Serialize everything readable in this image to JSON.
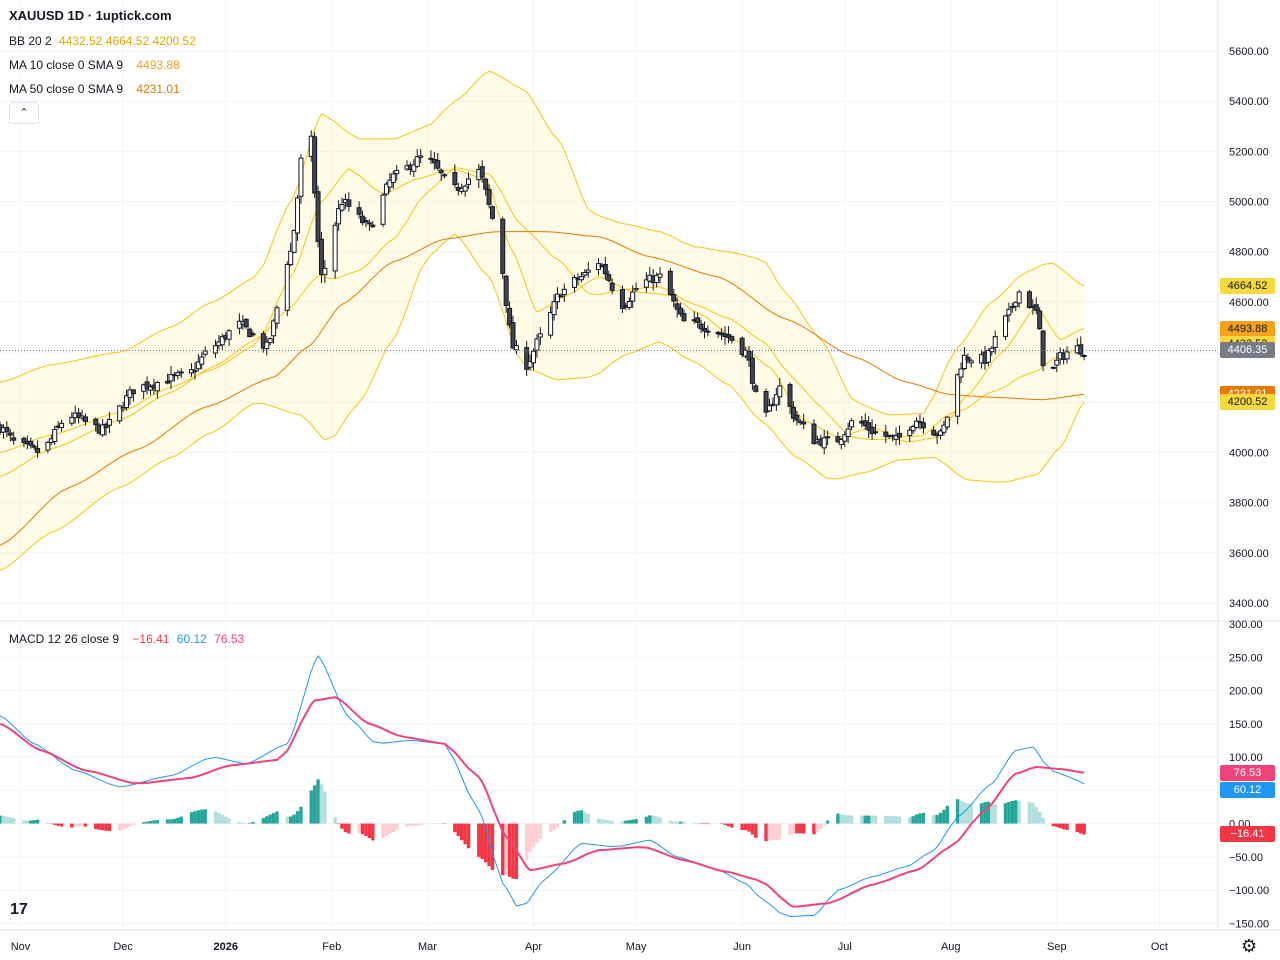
{
  "header": {
    "title": "XAUUSD 1D · 1uptick.com",
    "bb": {
      "name": "BB 20 2",
      "values": [
        "4432.52",
        "4664.52",
        "4200.52"
      ],
      "color": "#e0a800"
    },
    "ma10": {
      "name": "MA 10 close 0 SMA 9",
      "value": "4493.88",
      "color": "#f0a020"
    },
    "ma50": {
      "name": "MA 50 close 0 SMA 9",
      "value": "4231.01",
      "color": "#e07a00"
    },
    "collapse_icon": "chevron-up-icon",
    "collapse_glyph": "⌃"
  },
  "macd_legend": {
    "name": "MACD 12 26 close 9",
    "hist": "−16.41",
    "macd": "60.12",
    "signal": "76.53"
  },
  "price_tags": [
    {
      "label": "4664.52",
      "price": 4664.52,
      "bg": "#f7d93e",
      "fg": "#131722"
    },
    {
      "label": "4493.88",
      "price": 4493.88,
      "bg": "#f7a21b",
      "fg": "#131722"
    },
    {
      "label": "4432.52",
      "price": 4432.52,
      "bg": "#f7d93e",
      "fg": "#131722"
    },
    {
      "label": "4406.35",
      "price": 4406.35,
      "bg": "#787b86",
      "fg": "#ffffff"
    },
    {
      "label": "4231.01",
      "price": 4231.01,
      "bg": "#e6790a",
      "fg": "#ffffff"
    },
    {
      "label": "4200.52",
      "price": 4200.52,
      "bg": "#f7d93e",
      "fg": "#131722"
    }
  ],
  "macd_tags": [
    {
      "label": "76.53",
      "value": 76.53,
      "bg": "#ef447a",
      "fg": "#ffffff"
    },
    {
      "label": "60.12",
      "value": 60.12,
      "bg": "#2196f3",
      "fg": "#ffffff"
    },
    {
      "label": "−16.41",
      "value": -16.41,
      "bg": "#f23645",
      "fg": "#ffffff"
    }
  ],
  "footer": {
    "logo_icon": "tradingview-logo-icon",
    "logo_text": "17",
    "settings_icon": "gear-icon",
    "settings_glyph": "⚙"
  },
  "chart_data": [
    {
      "type": "candlestick",
      "title": "XAUUSD 1D",
      "ylim": [
        3340,
        5660
      ],
      "y_ticks": [
        "5600.00",
        "5400.00",
        "5200.00",
        "5000.00",
        "4800.00",
        "4600.00",
        "4400.00",
        "4200.00",
        "4000.00",
        "3800.00",
        "3600.00",
        "3400.00"
      ],
      "y_tick_values": [
        5600,
        5400,
        5200,
        5000,
        4800,
        4600,
        4400,
        4200,
        4000,
        3800,
        3600,
        3400
      ],
      "x_labels": [
        "Nov",
        "Dec",
        "2026",
        "Feb",
        "Mar",
        "Apr",
        "May",
        "Jun",
        "Jul",
        "Aug",
        "Sep",
        "Oct"
      ],
      "x_label_days": [
        6,
        36,
        66,
        97,
        125,
        156,
        186,
        217,
        247,
        278,
        309,
        339
      ],
      "first_day": 0,
      "last_price": 4406.35,
      "last_day": 317,
      "bb_upper_anchors": [
        [
          0,
          4280
        ],
        [
          15,
          4350
        ],
        [
          35,
          4400
        ],
        [
          50,
          4500
        ],
        [
          62,
          4600
        ],
        [
          75,
          4700
        ],
        [
          85,
          5000
        ],
        [
          94,
          5350
        ],
        [
          105,
          5250
        ],
        [
          115,
          5250
        ],
        [
          125,
          5300
        ],
        [
          133,
          5400
        ],
        [
          143,
          5520
        ],
        [
          153,
          5450
        ],
        [
          163,
          5250
        ],
        [
          173,
          4950
        ],
        [
          183,
          4910
        ],
        [
          193,
          4880
        ],
        [
          203,
          4820
        ],
        [
          213,
          4800
        ],
        [
          223,
          4770
        ],
        [
          230,
          4630
        ],
        [
          240,
          4450
        ],
        [
          250,
          4200
        ],
        [
          260,
          4150
        ],
        [
          270,
          4155
        ],
        [
          280,
          4420
        ],
        [
          290,
          4600
        ],
        [
          300,
          4720
        ],
        [
          307,
          4760
        ],
        [
          317,
          4665
        ]
      ],
      "bb_lower_anchors": [
        [
          0,
          3530
        ],
        [
          15,
          3680
        ],
        [
          35,
          3860
        ],
        [
          50,
          3980
        ],
        [
          62,
          4080
        ],
        [
          75,
          4200
        ],
        [
          88,
          4150
        ],
        [
          96,
          4040
        ],
        [
          105,
          4200
        ],
        [
          115,
          4450
        ],
        [
          125,
          4780
        ],
        [
          133,
          4870
        ],
        [
          143,
          4700
        ],
        [
          153,
          4340
        ],
        [
          163,
          4290
        ],
        [
          173,
          4300
        ],
        [
          183,
          4390
        ],
        [
          193,
          4440
        ],
        [
          203,
          4360
        ],
        [
          213,
          4270
        ],
        [
          223,
          4120
        ],
        [
          233,
          3980
        ],
        [
          243,
          3890
        ],
        [
          253,
          3920
        ],
        [
          263,
          3970
        ],
        [
          273,
          3980
        ],
        [
          283,
          3890
        ],
        [
          293,
          3880
        ],
        [
          303,
          3910
        ],
        [
          310,
          4020
        ],
        [
          317,
          4200
        ]
      ],
      "ma10_anchors": [
        [
          0,
          4000
        ],
        [
          15,
          4070
        ],
        [
          35,
          4160
        ],
        [
          50,
          4260
        ],
        [
          62,
          4330
        ],
        [
          75,
          4430
        ],
        [
          85,
          4700
        ],
        [
          94,
          5000
        ],
        [
          102,
          5130
        ],
        [
          112,
          5030
        ],
        [
          122,
          5090
        ],
        [
          132,
          5130
        ],
        [
          142,
          5090
        ],
        [
          150,
          4800
        ],
        [
          157,
          4560
        ],
        [
          165,
          4620
        ],
        [
          175,
          4700
        ],
        [
          185,
          4640
        ],
        [
          195,
          4630
        ],
        [
          205,
          4550
        ],
        [
          215,
          4450
        ],
        [
          225,
          4340
        ],
        [
          235,
          4130
        ],
        [
          245,
          4060
        ],
        [
          255,
          4100
        ],
        [
          265,
          4040
        ],
        [
          274,
          4060
        ],
        [
          283,
          4230
        ],
        [
          293,
          4400
        ],
        [
          303,
          4580
        ],
        [
          310,
          4450
        ],
        [
          317,
          4494
        ]
      ],
      "ma50_anchors": [
        [
          0,
          3630
        ],
        [
          20,
          3860
        ],
        [
          40,
          4010
        ],
        [
          60,
          4180
        ],
        [
          80,
          4300
        ],
        [
          90,
          4420
        ],
        [
          100,
          4590
        ],
        [
          115,
          4760
        ],
        [
          130,
          4850
        ],
        [
          145,
          4880
        ],
        [
          160,
          4880
        ],
        [
          175,
          4860
        ],
        [
          190,
          4780
        ],
        [
          210,
          4700
        ],
        [
          230,
          4530
        ],
        [
          250,
          4380
        ],
        [
          265,
          4280
        ],
        [
          278,
          4230
        ],
        [
          290,
          4220
        ],
        [
          305,
          4210
        ],
        [
          317,
          4231
        ]
      ],
      "close_anchors": [
        [
          0,
          4100
        ],
        [
          5,
          4030
        ],
        [
          12,
          4000
        ],
        [
          20,
          4150
        ],
        [
          30,
          4090
        ],
        [
          40,
          4260
        ],
        [
          55,
          4310
        ],
        [
          62,
          4420
        ],
        [
          70,
          4510
        ],
        [
          78,
          4420
        ],
        [
          85,
          4800
        ],
        [
          90,
          5380
        ],
        [
          94,
          4700
        ],
        [
          100,
          5000
        ],
        [
          108,
          4900
        ],
        [
          115,
          5100
        ],
        [
          124,
          5180
        ],
        [
          133,
          5050
        ],
        [
          140,
          5120
        ],
        [
          145,
          4900
        ],
        [
          150,
          4420
        ],
        [
          154,
          4350
        ],
        [
          158,
          4460
        ],
        [
          164,
          4640
        ],
        [
          170,
          4700
        ],
        [
          175,
          4760
        ],
        [
          182,
          4590
        ],
        [
          188,
          4680
        ],
        [
          193,
          4700
        ],
        [
          200,
          4520
        ],
        [
          207,
          4500
        ],
        [
          213,
          4460
        ],
        [
          218,
          4400
        ],
        [
          223,
          4120
        ],
        [
          228,
          4260
        ],
        [
          233,
          4130
        ],
        [
          238,
          4050
        ],
        [
          244,
          4040
        ],
        [
          250,
          4130
        ],
        [
          256,
          4080
        ],
        [
          262,
          4050
        ],
        [
          268,
          4130
        ],
        [
          275,
          4070
        ],
        [
          282,
          4380
        ],
        [
          288,
          4370
        ],
        [
          294,
          4530
        ],
        [
          298,
          4640
        ],
        [
          303,
          4560
        ],
        [
          306,
          4280
        ],
        [
          310,
          4380
        ],
        [
          314,
          4420
        ],
        [
          317,
          4406
        ]
      ]
    },
    {
      "type": "macd",
      "title": "MACD 12 26 close 9",
      "ylim": [
        -160,
        300
      ],
      "y_ticks": [
        "300.00",
        "250.00",
        "200.00",
        "150.00",
        "100.00",
        "50.00",
        "0.00",
        "−50.00",
        "−100.00",
        "−150.00"
      ],
      "y_tick_values": [
        300,
        250,
        200,
        150,
        100,
        50,
        0,
        -50,
        -100,
        -150
      ],
      "macd_anchors": [
        [
          0,
          162
        ],
        [
          10,
          120
        ],
        [
          22,
          80
        ],
        [
          35,
          55
        ],
        [
          50,
          72
        ],
        [
          62,
          100
        ],
        [
          72,
          90
        ],
        [
          84,
          120
        ],
        [
          93,
          252
        ],
        [
          102,
          160
        ],
        [
          110,
          120
        ],
        [
          120,
          125
        ],
        [
          130,
          120
        ],
        [
          140,
          20
        ],
        [
          147,
          -90
        ],
        [
          152,
          -130
        ],
        [
          160,
          -80
        ],
        [
          170,
          -30
        ],
        [
          180,
          -35
        ],
        [
          190,
          -25
        ],
        [
          198,
          -50
        ],
        [
          210,
          -70
        ],
        [
          218,
          -90
        ],
        [
          223,
          -115
        ],
        [
          230,
          -140
        ],
        [
          238,
          -138
        ],
        [
          245,
          -100
        ],
        [
          255,
          -80
        ],
        [
          265,
          -65
        ],
        [
          273,
          -40
        ],
        [
          280,
          10
        ],
        [
          290,
          60
        ],
        [
          297,
          110
        ],
        [
          302,
          115
        ],
        [
          307,
          80
        ],
        [
          313,
          70
        ],
        [
          317,
          60
        ]
      ],
      "signal_anchors": [
        [
          0,
          150
        ],
        [
          12,
          110
        ],
        [
          25,
          80
        ],
        [
          40,
          60
        ],
        [
          55,
          68
        ],
        [
          68,
          88
        ],
        [
          82,
          96
        ],
        [
          92,
          185
        ],
        [
          98,
          190
        ],
        [
          108,
          150
        ],
        [
          118,
          130
        ],
        [
          130,
          120
        ],
        [
          140,
          70
        ],
        [
          148,
          -20
        ],
        [
          155,
          -70
        ],
        [
          165,
          -60
        ],
        [
          175,
          -40
        ],
        [
          188,
          -35
        ],
        [
          200,
          -55
        ],
        [
          212,
          -72
        ],
        [
          222,
          -85
        ],
        [
          232,
          -125
        ],
        [
          242,
          -120
        ],
        [
          255,
          -92
        ],
        [
          268,
          -70
        ],
        [
          278,
          -35
        ],
        [
          288,
          20
        ],
        [
          297,
          75
        ],
        [
          303,
          85
        ],
        [
          310,
          82
        ],
        [
          317,
          76.53
        ]
      ]
    }
  ]
}
